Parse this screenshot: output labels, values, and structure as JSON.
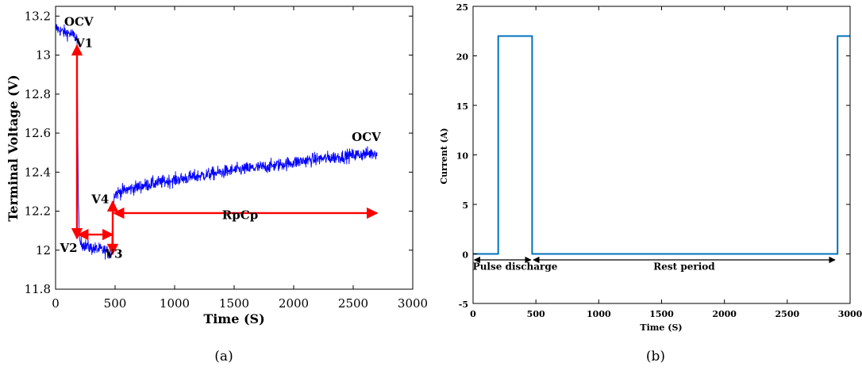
{
  "chart_data": [
    {
      "type": "line",
      "panel_caption": "(a)",
      "xlabel": "Time (S)",
      "ylabel": "Terminal Voltage (V)",
      "xlim": [
        0,
        3000
      ],
      "ylim": [
        11.8,
        13.25
      ],
      "xticks": [
        0,
        500,
        1000,
        1500,
        2000,
        2500,
        3000
      ],
      "xtick_labels": [
        "0",
        "500",
        "1000",
        "1500",
        "2000",
        "2500",
        "3000"
      ],
      "yticks": [
        11.8,
        12,
        12.2,
        12.4,
        12.6,
        12.8,
        13,
        13.2
      ],
      "ytick_labels": [
        "11.8",
        "12",
        "12.2",
        "12.4",
        "12.6",
        "12.8",
        "13",
        "13.2"
      ],
      "grid": false,
      "series": [
        {
          "color": "#0000ff",
          "noise": 0.03,
          "x": [
            0,
            60,
            120,
            180,
            190,
            200,
            300,
            400,
            470,
            480,
            490,
            500,
            600,
            800,
            1000,
            1200,
            1500,
            1800,
            2100,
            2400,
            2700
          ],
          "y": [
            13.14,
            13.12,
            13.11,
            13.09,
            12.35,
            12.04,
            12.01,
            12.0,
            11.98,
            12.2,
            12.27,
            12.29,
            12.31,
            12.34,
            12.36,
            12.38,
            12.41,
            12.43,
            12.46,
            12.48,
            12.5
          ]
        }
      ],
      "annotations": [
        {
          "text": "OCV",
          "x": 195,
          "y": 13.15
        },
        {
          "text": "V1",
          "x": 240,
          "y": 13.04
        },
        {
          "text": "V2",
          "x": 110,
          "y": 11.99
        },
        {
          "text": "V3",
          "x": 490,
          "y": 11.96
        },
        {
          "text": "V4",
          "x": 375,
          "y": 12.24
        },
        {
          "text": "RpCp",
          "x": 1550,
          "y": 12.16
        },
        {
          "text": "OCV",
          "x": 2610,
          "y": 12.56
        }
      ],
      "arrows": [
        {
          "from": [
            180,
            13.05
          ],
          "to": [
            180,
            12.06
          ],
          "double": true,
          "color": "#ff0000"
        },
        {
          "from": [
            190,
            12.08
          ],
          "to": [
            480,
            12.08
          ],
          "double": true,
          "color": "#ff0000"
        },
        {
          "from": [
            480,
            12.25
          ],
          "to": [
            480,
            11.98
          ],
          "double": true,
          "color": "#ff0000"
        },
        {
          "from": [
            490,
            12.19
          ],
          "to": [
            2700,
            12.19
          ],
          "double": true,
          "color": "#ff0000"
        }
      ]
    },
    {
      "type": "line",
      "panel_caption": "(b)",
      "xlabel": "Time (S)",
      "ylabel": "Current (A)",
      "xlim": [
        0,
        3000
      ],
      "ylim": [
        -5,
        25
      ],
      "xticks": [
        0,
        500,
        1000,
        1500,
        2000,
        2500,
        3000
      ],
      "xtick_labels": [
        "0",
        "500",
        "1000",
        "1500",
        "2000",
        "2500",
        "3000"
      ],
      "yticks": [
        -5,
        0,
        5,
        10,
        15,
        20,
        25
      ],
      "ytick_labels": [
        "-5",
        "0",
        "5",
        "10",
        "15",
        "20",
        "25"
      ],
      "grid": false,
      "series": [
        {
          "color": "#0072bd",
          "x": [
            0,
            200,
            200,
            470,
            470,
            2900,
            2900,
            3000
          ],
          "y": [
            0,
            0,
            22,
            22,
            0,
            0,
            22,
            22
          ]
        }
      ],
      "annotations": [
        {
          "text": "Pulse discharge",
          "x": 335,
          "y": -1.6
        },
        {
          "text": "Rest period",
          "x": 1680,
          "y": -1.6
        }
      ],
      "arrows": [
        {
          "from": [
            10,
            -0.6
          ],
          "to": [
            460,
            -0.6
          ],
          "double": true,
          "color": "#000000"
        },
        {
          "from": [
            480,
            -0.6
          ],
          "to": [
            2880,
            -0.6
          ],
          "double": true,
          "color": "#000000"
        }
      ]
    }
  ]
}
